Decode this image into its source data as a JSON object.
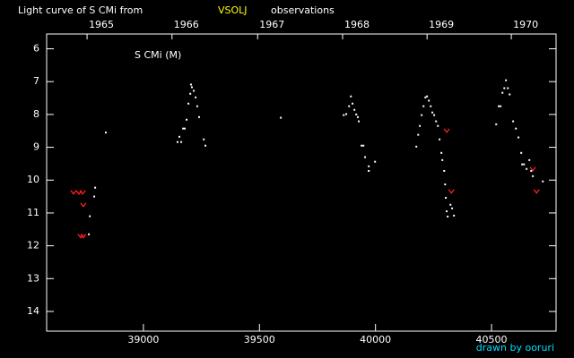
{
  "chart_data": {
    "type": "scatter",
    "title": "Light curve of S CMi from",
    "source": "VSOLJ",
    "title_suffix": "observations",
    "annotation": "S CMi (M)",
    "credit": "drawn by ooruri",
    "xlim": [
      38583,
      40778
    ],
    "xticks": [
      39000,
      39500,
      40000,
      40500
    ],
    "x2ticks": [
      {
        "value": 38819,
        "label": "1965"
      },
      {
        "value": 39185,
        "label": "1966"
      },
      {
        "value": 39554,
        "label": "1967"
      },
      {
        "value": 39920,
        "label": "1968"
      },
      {
        "value": 40284,
        "label": "1969"
      },
      {
        "value": 40647,
        "label": "1970"
      }
    ],
    "ylim": [
      14.6,
      5.55
    ],
    "yticks": [
      6,
      7,
      8,
      9,
      10,
      11,
      12,
      13,
      14
    ],
    "series": [
      {
        "color": "#ffffff",
        "marker": "dot",
        "x": [
          38788,
          38792,
          38769,
          38765,
          38838,
          39147,
          39155,
          39163,
          39171,
          39178,
          39186,
          39194,
          39202,
          39205,
          39209,
          39217,
          39225,
          39232,
          39240,
          39260,
          39267,
          39592,
          39863,
          39874,
          39886,
          39894,
          39901,
          39909,
          39917,
          39924,
          39928,
          39940,
          39948,
          39955,
          39971,
          39971,
          39998,
          40176,
          40184,
          40191,
          40199,
          40207,
          40215,
          40222,
          40230,
          40238,
          40245,
          40253,
          40261,
          40269,
          40276,
          40284,
          40288,
          40296,
          40300,
          40303,
          40307,
          40311,
          40323,
          40330,
          40338,
          40520,
          40531,
          40539,
          40547,
          40555,
          40562,
          40570,
          40578,
          40593,
          40605,
          40616,
          40628,
          40632,
          40640,
          40651,
          40663,
          40671,
          40678,
          40721
        ],
        "values": [
          10.5,
          10.23,
          11.1,
          11.65,
          8.55,
          8.84,
          8.68,
          8.84,
          8.43,
          8.43,
          8.16,
          7.67,
          7.37,
          7.09,
          7.17,
          7.28,
          7.48,
          7.75,
          8.08,
          8.76,
          8.95,
          8.1,
          8.02,
          7.99,
          7.75,
          7.45,
          7.67,
          7.86,
          8.0,
          8.08,
          8.21,
          8.95,
          8.95,
          9.3,
          9.58,
          9.72,
          9.44,
          8.98,
          8.62,
          8.35,
          8.02,
          7.75,
          7.48,
          7.45,
          7.58,
          7.75,
          7.94,
          8.02,
          8.21,
          8.35,
          8.76,
          9.17,
          9.39,
          9.72,
          10.13,
          10.54,
          10.95,
          11.11,
          10.75,
          10.86,
          11.08,
          8.3,
          7.75,
          7.75,
          7.34,
          7.2,
          6.96,
          7.2,
          7.39,
          8.21,
          8.43,
          8.7,
          9.17,
          9.52,
          9.52,
          9.66,
          9.39,
          9.72,
          9.88,
          10.04
        ]
      },
      {
        "color": "#ff2020",
        "marker": "v",
        "x": [
          38699,
          38722,
          38738,
          38741,
          38730,
          38741,
          40307,
          40327,
          40678,
          40694
        ],
        "values": [
          10.37,
          10.37,
          10.37,
          10.75,
          11.7,
          11.7,
          8.49,
          10.34,
          9.66,
          10.34
        ]
      }
    ]
  }
}
